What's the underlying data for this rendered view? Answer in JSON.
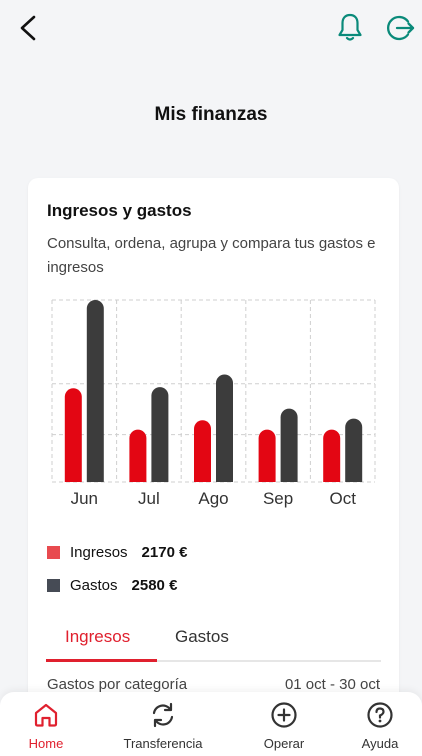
{
  "header": {
    "back_icon": "chevron-left-icon",
    "bell_icon": "bell-icon",
    "logout_icon": "logout-icon",
    "accent_color": "#0a8a7a"
  },
  "page": {
    "title": "Mis finanzas"
  },
  "card": {
    "title": "Ingresos y gastos",
    "subtitle": "Consulta, ordena, agrupa y compara tus gastos e ingresos"
  },
  "chart_data": {
    "type": "bar",
    "categories": [
      "Jun",
      "Jul",
      "Ago",
      "Sep",
      "Oct"
    ],
    "series": [
      {
        "name": "Ingresos",
        "color": "#e30613",
        "values": [
          1700,
          950,
          1120,
          950,
          950
        ]
      },
      {
        "name": "Gastos",
        "color": "#3c3c3c",
        "values": [
          3300,
          1720,
          1950,
          1330,
          1150
        ]
      }
    ],
    "ylim": [
      0,
      3300
    ],
    "grid": true,
    "legend": "bottom"
  },
  "legend": {
    "items": [
      {
        "label": "Ingresos",
        "value": "2170 €",
        "color": "#e84a4f"
      },
      {
        "label": "Gastos",
        "value": "2580 €",
        "color": "#464b55"
      }
    ]
  },
  "tabs": {
    "ingresos": "Ingresos",
    "gastos": "Gastos",
    "active_color": "#e0202e"
  },
  "category": {
    "label": "Gastos por categoría",
    "range": "01 oct - 30 oct"
  },
  "nav": {
    "home": {
      "label": "Home",
      "icon": "home-icon"
    },
    "transfer": {
      "label": "Transferencia",
      "icon": "refresh-icon"
    },
    "operate": {
      "label": "Operar",
      "icon": "plus-circle-icon"
    },
    "help": {
      "label": "Ayuda",
      "icon": "help-circle-icon"
    }
  }
}
